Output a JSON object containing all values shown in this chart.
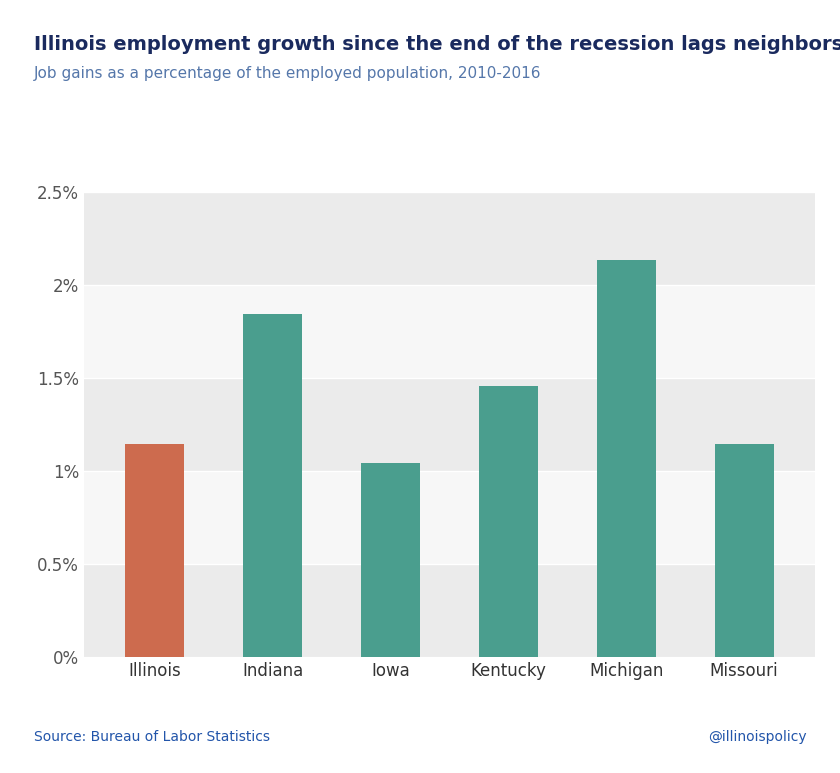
{
  "title": "Illinois employment growth since the end of the recession lags neighbors",
  "subtitle": "Job gains as a percentage of the employed population, 2010-2016",
  "source": "Source: Bureau of Labor Statistics",
  "handle": "@illinoispolicy",
  "categories": [
    "Illinois",
    "Indiana",
    "Iowa",
    "Kentucky",
    "Michigan",
    "Missouri"
  ],
  "values": [
    0.01145,
    0.01845,
    0.01045,
    0.01455,
    0.02135,
    0.01145
  ],
  "bar_colors": [
    "#cd6b4e",
    "#4a9e8e",
    "#4a9e8e",
    "#4a9e8e",
    "#4a9e8e",
    "#4a9e8e"
  ],
  "figure_bg": "#ffffff",
  "band_light": "#ebebeb",
  "band_white": "#f7f7f7",
  "title_color": "#1a2a5e",
  "subtitle_color": "#5577aa",
  "source_color": "#2255aa",
  "handle_color": "#2255aa",
  "ylim": [
    0,
    0.027
  ],
  "yticks": [
    0,
    0.005,
    0.01,
    0.015,
    0.02,
    0.025
  ],
  "ytick_labels": [
    "0%",
    "0.5%",
    "1%",
    "1.5%",
    "2%",
    "2.5%"
  ],
  "title_fontsize": 14,
  "subtitle_fontsize": 11,
  "tick_fontsize": 12,
  "bar_width": 0.5
}
